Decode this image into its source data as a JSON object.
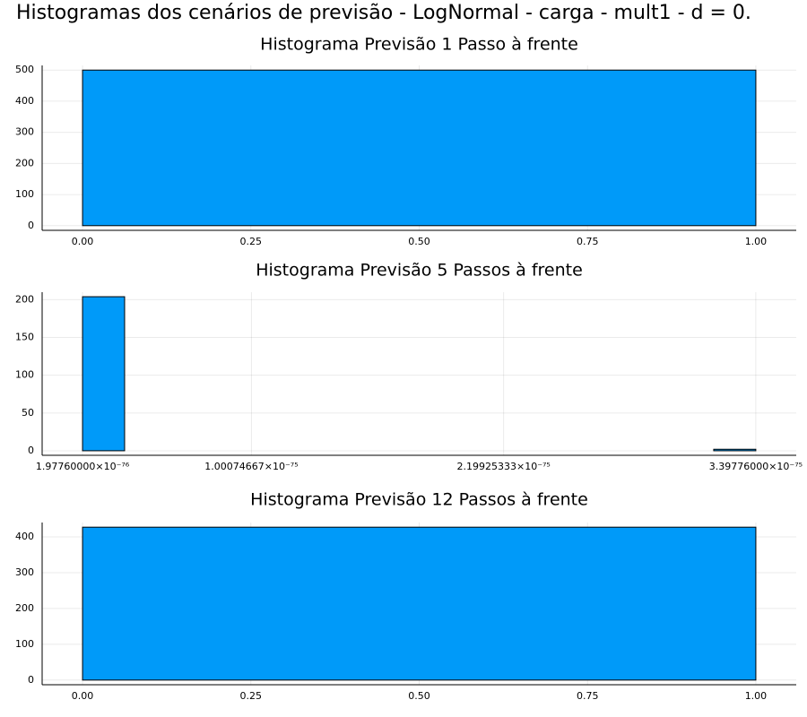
{
  "title": "Histogramas dos cenários de previsão - LogNormal - carga - mult1 - d = 0.",
  "chart_data": [
    {
      "type": "histogram",
      "title": "Histograma Previsão 1 Passo à frente",
      "color": "#009af9",
      "grid": true,
      "bins": [
        0,
        1
      ],
      "values": [
        500
      ],
      "xlim": [
        -0.06,
        1.06
      ],
      "ylim": [
        -15,
        515
      ],
      "xticks": [
        {
          "value": 0,
          "label": "0.00"
        },
        {
          "value": 0.25,
          "label": "0.25"
        },
        {
          "value": 0.5,
          "label": "0.50"
        },
        {
          "value": 0.75,
          "label": "0.75"
        },
        {
          "value": 1,
          "label": "1.00"
        }
      ],
      "yticks": [
        0,
        100,
        200,
        300,
        400,
        500
      ]
    },
    {
      "type": "histogram",
      "title": "Histograma Previsão 5 Passos à frente",
      "color": "#009af9",
      "grid": true,
      "bins": [
        1.9776e-76,
        3.9776e-76,
        5.9776e-76,
        7.9776e-76,
        9.9776e-76,
        1.19776e-75,
        1.39776e-75,
        1.59776e-75,
        1.79776e-75,
        1.99776e-75,
        2.19776e-75,
        2.39776e-75,
        2.59776e-75,
        2.79776e-75,
        2.99776e-75,
        3.19776e-75,
        3.39776e-75
      ],
      "values": [
        204,
        0,
        0,
        0,
        0,
        0,
        0,
        0,
        0,
        0,
        0,
        0,
        0,
        0,
        0,
        2
      ],
      "xlim": [
        5.8e-78,
        3.59e-75
      ],
      "ylim": [
        -6,
        210
      ],
      "xticks": [
        {
          "value": 1.9776e-76,
          "label": "1.97760000×10⁻⁷⁶"
        },
        {
          "value": 1.00074667e-75,
          "label": "1.00074667×10⁻⁷⁵"
        },
        {
          "value": 2.19925333e-75,
          "label": "2.19925333×10⁻⁷⁵"
        },
        {
          "value": 3.39776e-75,
          "label": "3.39776000×10⁻⁷⁵"
        }
      ],
      "yticks": [
        0,
        50,
        100,
        150,
        200
      ]
    },
    {
      "type": "histogram",
      "title": "Histograma Previsão 12 Passos à frente",
      "color": "#009af9",
      "grid": true,
      "bins": [
        0,
        1
      ],
      "values": [
        427
      ],
      "xlim": [
        -0.06,
        1.06
      ],
      "ylim": [
        -13,
        440
      ],
      "xticks": [
        {
          "value": 0,
          "label": "0.00"
        },
        {
          "value": 0.25,
          "label": "0.25"
        },
        {
          "value": 0.5,
          "label": "0.50"
        },
        {
          "value": 0.75,
          "label": "0.75"
        },
        {
          "value": 1,
          "label": "1.00"
        }
      ],
      "yticks": [
        0,
        100,
        200,
        300,
        400
      ]
    }
  ]
}
